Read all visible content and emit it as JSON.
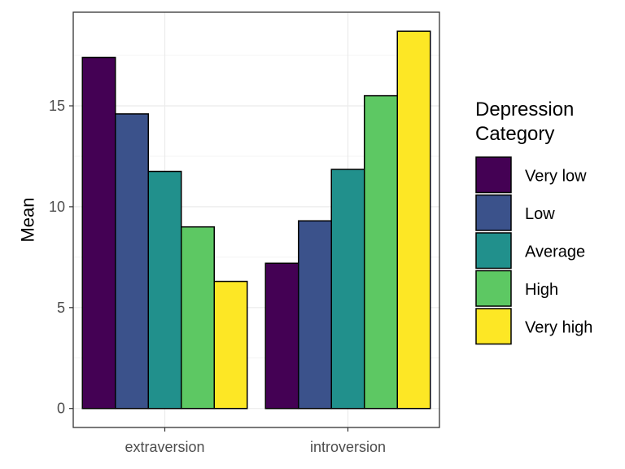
{
  "chart_data": {
    "type": "bar",
    "categories": [
      "extraversion",
      "introversion"
    ],
    "series": [
      {
        "name": "Very low",
        "color": "#440154",
        "values": [
          17.4,
          7.2
        ]
      },
      {
        "name": "Low",
        "color": "#3B528B",
        "values": [
          14.6,
          9.3
        ]
      },
      {
        "name": "Average",
        "color": "#21908C",
        "values": [
          11.75,
          11.85
        ]
      },
      {
        "name": "High",
        "color": "#5DC863",
        "values": [
          9.0,
          15.5
        ]
      },
      {
        "name": "Very high",
        "color": "#FDE725",
        "values": [
          6.3,
          18.7
        ]
      }
    ],
    "title": "",
    "xlabel": "",
    "ylabel": "Mean",
    "ylim": [
      -0.94,
      19.64
    ],
    "yticks": [
      0,
      5,
      10,
      15
    ],
    "ytick_labels": [
      "0",
      "5",
      "10",
      "15"
    ],
    "grid": true,
    "legend": {
      "title_lines": [
        "Depression",
        "Category"
      ],
      "placement": "right"
    }
  }
}
